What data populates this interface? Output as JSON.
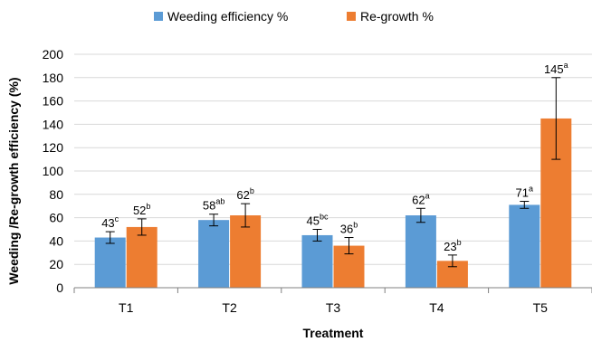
{
  "chart_data": {
    "type": "bar",
    "title": "",
    "xlabel": "Treatment",
    "ylabel": "Weeding /Re-growth efficiency (%)",
    "ylim": [
      0,
      200
    ],
    "yticks": [
      "0",
      "20",
      "40",
      "60",
      "80",
      "100",
      "120",
      "140",
      "160",
      "180",
      "200"
    ],
    "grid": true,
    "legend_position": "top",
    "categories": [
      "T1",
      "T2",
      "T3",
      "T4",
      "T5"
    ],
    "series": [
      {
        "name": "Weeding efficiency %",
        "color": "#5B9BD5",
        "values": [
          43,
          58,
          45,
          62,
          71
        ],
        "error": [
          5,
          5,
          5,
          6,
          3
        ],
        "labels": [
          "43",
          "58",
          "45",
          "62",
          "71"
        ],
        "sup": [
          "c",
          "ab",
          "bc",
          "a",
          "a"
        ]
      },
      {
        "name": "Re-growth %",
        "color": "#ED7D31",
        "values": [
          52,
          62,
          36,
          23,
          145
        ],
        "error": [
          7,
          10,
          7,
          5,
          35
        ],
        "labels": [
          "52",
          "62",
          "36",
          "23",
          "145"
        ],
        "sup": [
          "b",
          "b",
          "b",
          "b",
          "a"
        ]
      }
    ]
  }
}
